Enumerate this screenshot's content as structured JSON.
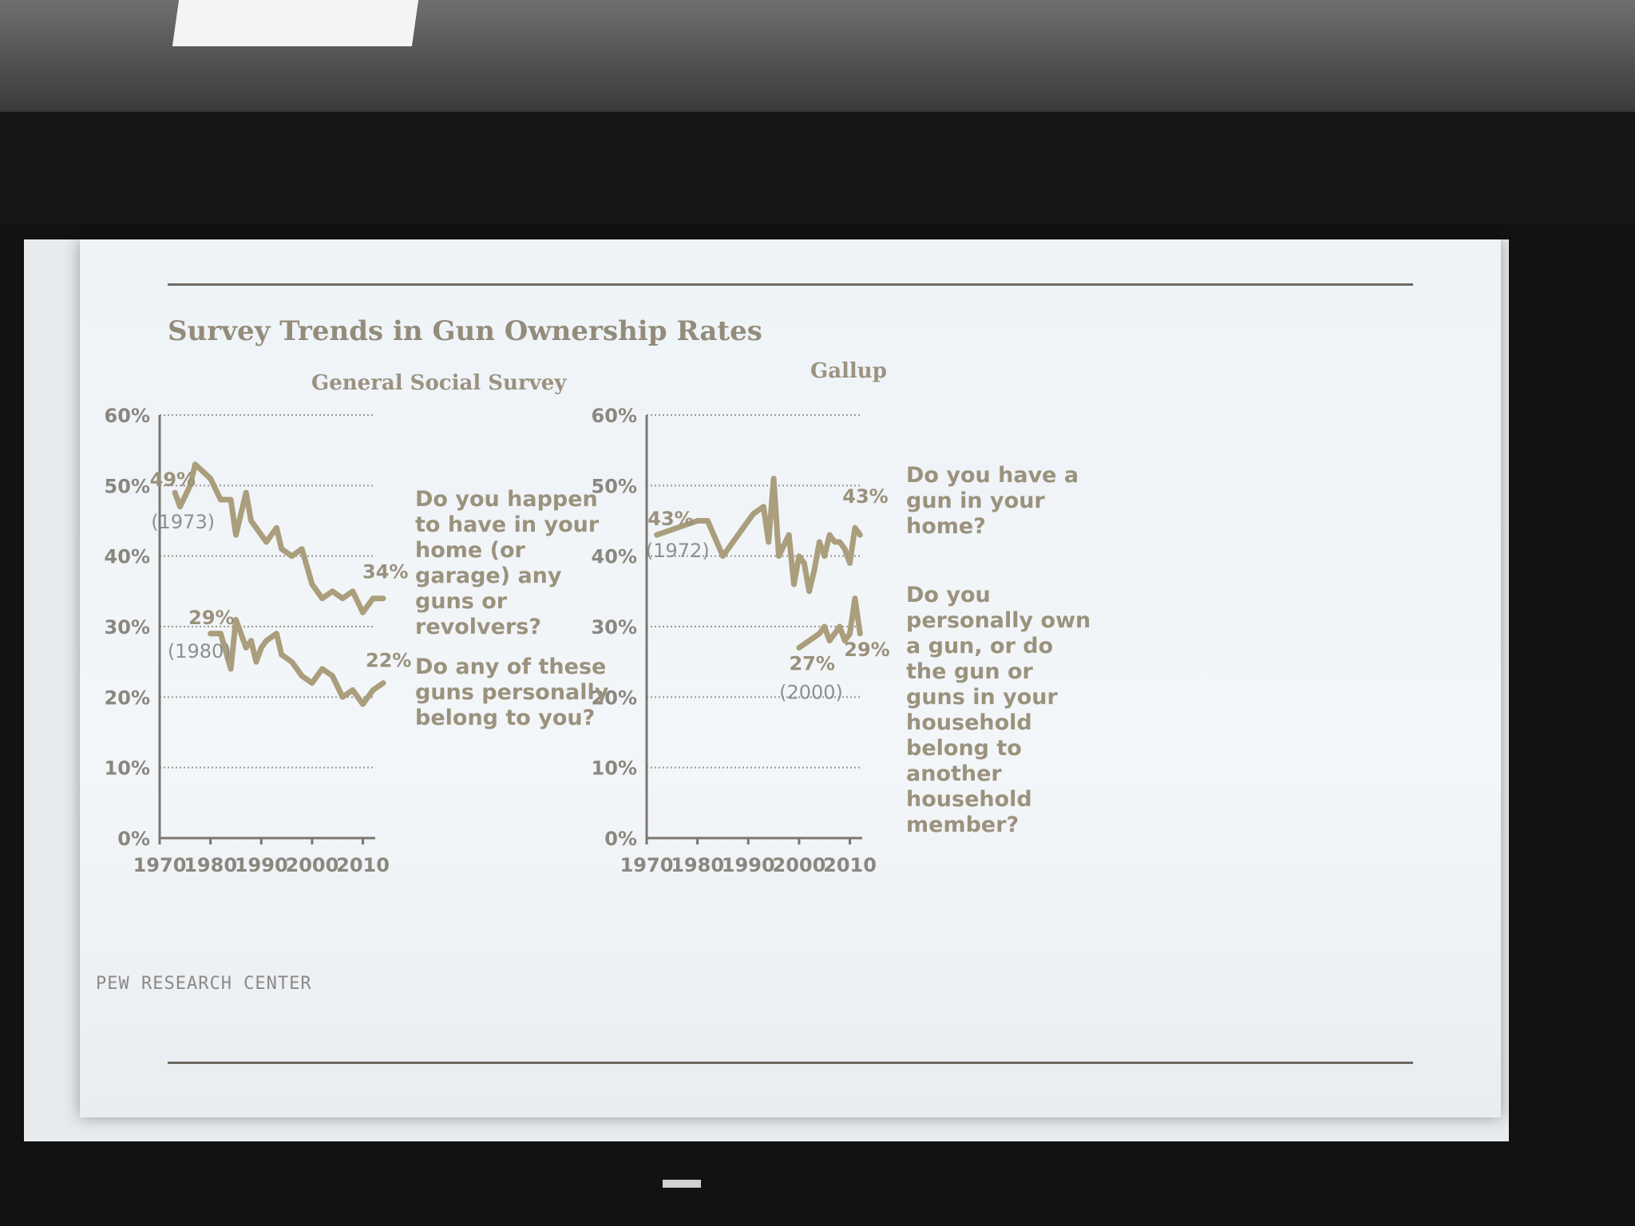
{
  "slide": {
    "title": "Survey Trends in Gun Ownership Rates",
    "source": "PEW RESEARCH  CENTER",
    "accent_color": "#aa9e7c"
  },
  "chart_data": [
    {
      "type": "line",
      "title": "General Social Survey",
      "x_ticks": [
        "1970",
        "1980",
        "1990",
        "2000",
        "2010"
      ],
      "y_ticks": [
        "0%",
        "10%",
        "20%",
        "30%",
        "40%",
        "50%",
        "60%"
      ],
      "xlim": [
        1970,
        2014
      ],
      "ylim": [
        0,
        60
      ],
      "grid": "dotted horizontal",
      "series": [
        {
          "name": "Do you happen\nto have in your\nhome (or\ngarage) any\nguns or\nrevolvers?",
          "x": [
            1973,
            1974,
            1976,
            1977,
            1980,
            1982,
            1984,
            1985,
            1987,
            1988,
            1989,
            1990,
            1991,
            1993,
            1994,
            1996,
            1998,
            2000,
            2002,
            2004,
            2006,
            2008,
            2010,
            2012,
            2014
          ],
          "y": [
            49,
            47,
            50,
            53,
            51,
            48,
            48,
            43,
            49,
            45,
            44,
            43,
            42,
            44,
            41,
            40,
            41,
            36,
            34,
            35,
            34,
            35,
            32,
            34,
            34
          ],
          "start_label": "49%",
          "start_year_label": "(1973)",
          "end_label": "34%"
        },
        {
          "name": "Do any of these\nguns personally\nbelong to you?",
          "x": [
            1980,
            1982,
            1984,
            1985,
            1987,
            1988,
            1989,
            1990,
            1991,
            1993,
            1994,
            1996,
            1998,
            2000,
            2002,
            2004,
            2006,
            2008,
            2010,
            2012,
            2014
          ],
          "y": [
            29,
            29,
            24,
            31,
            27,
            28,
            25,
            27,
            28,
            29,
            26,
            25,
            23,
            22,
            24,
            23,
            20,
            21,
            19,
            21,
            22
          ],
          "start_label": "29%",
          "start_year_label": "(1980)",
          "end_label": "22%"
        }
      ]
    },
    {
      "type": "line",
      "title": "Gallup",
      "x_ticks": [
        "1970",
        "1980",
        "1990",
        "2000",
        "2010"
      ],
      "y_ticks": [
        "0%",
        "10%",
        "20%",
        "30%",
        "40%",
        "50%",
        "60%"
      ],
      "xlim": [
        1970,
        2014
      ],
      "ylim": [
        0,
        60
      ],
      "grid": "dotted horizontal",
      "series": [
        {
          "name": "Do you have a\ngun in your\nhome?",
          "x": [
            1972,
            1980,
            1982,
            1985,
            1989,
            1991,
            1993,
            1994,
            1995,
            1996,
            1998,
            1999,
            2000,
            2001,
            2002,
            2003,
            2004,
            2005,
            2006,
            2007,
            2008,
            2009,
            2010,
            2011,
            2012
          ],
          "y": [
            43,
            45,
            45,
            40,
            44,
            46,
            47,
            42,
            51,
            40,
            43,
            36,
            40,
            39,
            35,
            38,
            42,
            40,
            43,
            42,
            42,
            41,
            39,
            44,
            43
          ],
          "start_label": "43%",
          "start_year_label": "(1972)",
          "end_label": "43%"
        },
        {
          "name": "Do you\npersonally own\na gun, or do\nthe gun or\nguns in your\nhousehold\nbelong to\nanother\nhousehold\nmember?",
          "x": [
            2000,
            2002,
            2004,
            2005,
            2006,
            2007,
            2008,
            2009,
            2010,
            2011,
            2012
          ],
          "y": [
            27,
            28,
            29,
            30,
            28,
            29,
            30,
            28,
            29,
            34,
            29
          ],
          "start_label": "27%",
          "start_year_label": "(2000)",
          "end_label": "29%"
        }
      ]
    }
  ]
}
